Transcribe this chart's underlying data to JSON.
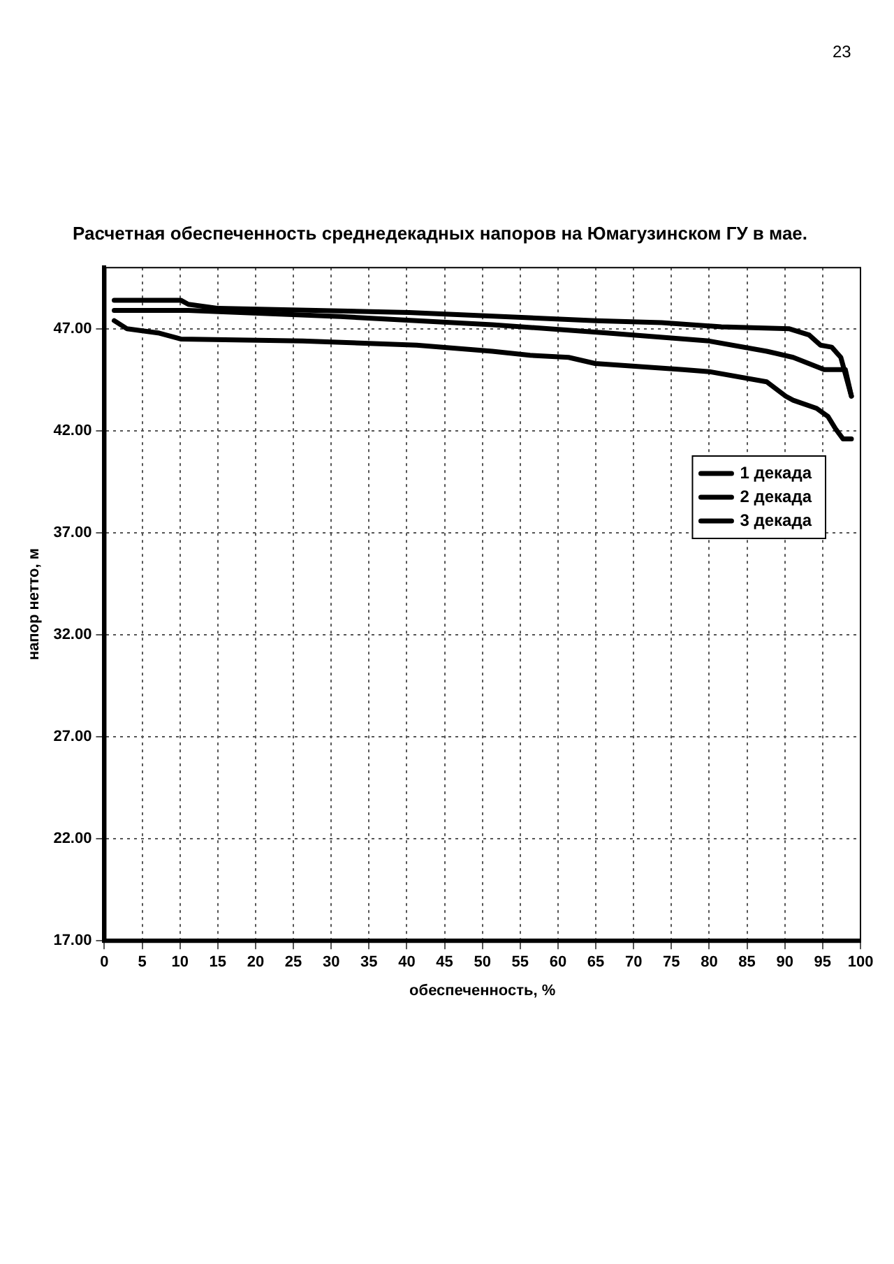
{
  "chart_data": {
    "type": "line",
    "title": "Расчетная обеспеченность среднедекадных напоров на Юмагузинском ГУ в мае.",
    "xlabel": "обеспеченность, %",
    "ylabel": "напор нетто, м",
    "xlim": [
      0,
      100
    ],
    "xticks": [
      0,
      5,
      10,
      15,
      20,
      25,
      30,
      35,
      40,
      45,
      50,
      55,
      60,
      65,
      70,
      75,
      80,
      85,
      90,
      95,
      100
    ],
    "ylim": [
      17,
      50
    ],
    "yticks": [
      {
        "value": 17,
        "label": "17.00"
      },
      {
        "value": 22,
        "label": "22.00"
      },
      {
        "value": 27,
        "label": "27.00"
      },
      {
        "value": 32,
        "label": "32.00"
      },
      {
        "value": 37,
        "label": "37.00"
      },
      {
        "value": 42,
        "label": "42.00"
      },
      {
        "value": 47,
        "label": "47.00"
      }
    ],
    "grid": true,
    "legend": "top right",
    "marker": "none",
    "line_style": "solid",
    "annotations": [
      "23"
    ],
    "series": [
      {
        "name": "1 декада",
        "color": "#000000",
        "x": [
          1.3,
          10.1,
          11.1,
          15.1,
          40.3,
          65,
          73.7,
          81.6,
          90.6,
          93.2,
          94.7,
          96.2,
          97.4,
          98.8
        ],
        "values": [
          48.4,
          48.4,
          48.2,
          48.0,
          47.8,
          47.4,
          47.3,
          47.1,
          47.0,
          46.7,
          46.2,
          46.1,
          45.6,
          43.7
        ]
      },
      {
        "name": "2 декада",
        "color": "#000000",
        "x": [
          1.3,
          11.1,
          31.2,
          51.3,
          66.4,
          80,
          87.6,
          91.1,
          95.2,
          98.0,
          98.8
        ],
        "values": [
          47.9,
          47.9,
          47.6,
          47.2,
          46.8,
          46.4,
          45.9,
          45.6,
          45.0,
          45.0,
          43.7
        ]
      },
      {
        "name": "3 декада",
        "color": "#000000",
        "x": [
          1.3,
          3,
          7.1,
          10.1,
          26.2,
          41.3,
          51.3,
          56.3,
          61.4,
          64.9,
          76.5,
          80,
          87.6,
          90.1,
          91.1,
          94.2,
          95.7,
          96.7,
          97.7,
          98.8
        ],
        "values": [
          47.4,
          47.0,
          46.8,
          46.5,
          46.4,
          46.2,
          45.9,
          45.7,
          45.6,
          45.3,
          45.0,
          44.9,
          44.4,
          43.7,
          43.5,
          43.1,
          42.7,
          42.1,
          41.6,
          41.6
        ]
      }
    ]
  }
}
